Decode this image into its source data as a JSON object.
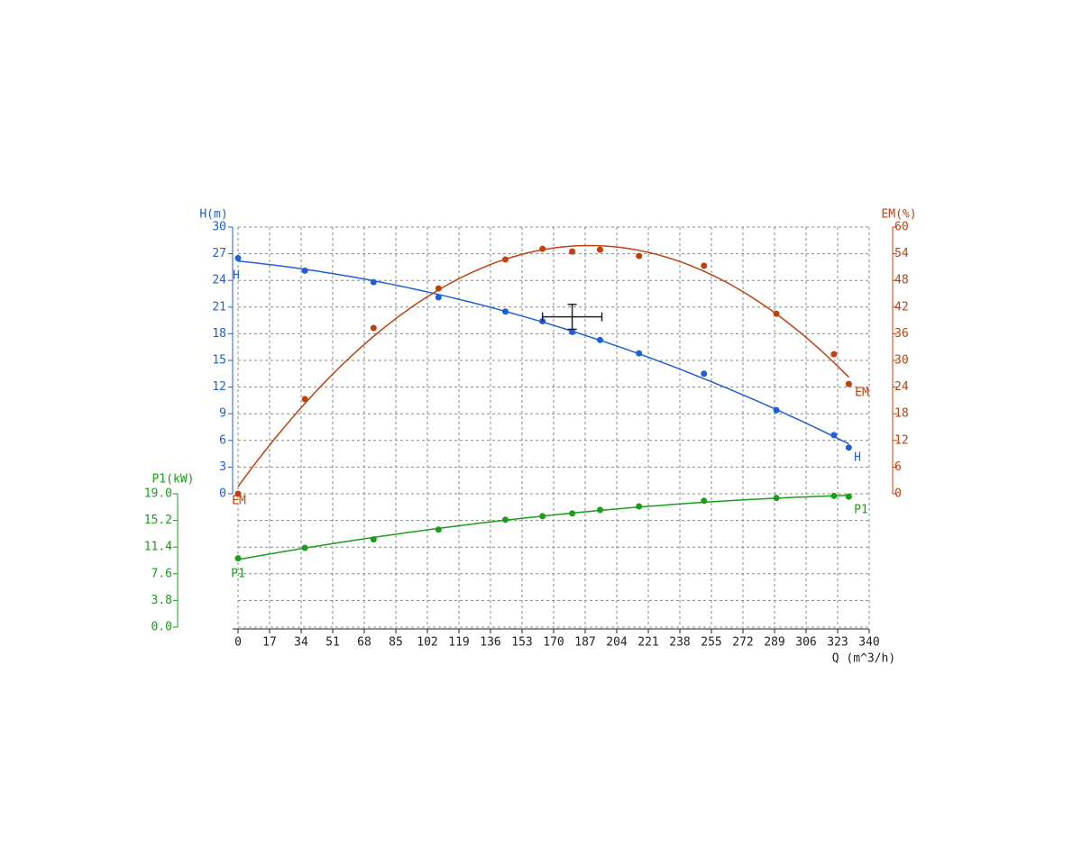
{
  "chart_data": {
    "type": "line",
    "xlabel": "Q (m^3/h)",
    "ylabel": "H(m)",
    "y2label": "EM(%)",
    "y3label": "P1(kW)",
    "xlim": [
      0,
      340
    ],
    "xticks": [
      0,
      17,
      34,
      51,
      68,
      85,
      102,
      119,
      136,
      153,
      170,
      187,
      204,
      221,
      238,
      255,
      272,
      289,
      306,
      323,
      340
    ],
    "ylim": [
      0,
      30
    ],
    "yticks": [
      0,
      3,
      6,
      9,
      12,
      15,
      18,
      21,
      24,
      27,
      30
    ],
    "y2lim": [
      0,
      60
    ],
    "y2ticks": [
      0,
      6,
      12,
      18,
      24,
      30,
      36,
      42,
      48,
      54,
      60
    ],
    "y3lim": [
      0,
      19
    ],
    "y3ticks": [
      {
        "value": 0,
        "label": "0.0"
      },
      3.8,
      7.6,
      11.4,
      15.2,
      {
        "value": 19,
        "label": "19.0"
      }
    ],
    "grid": true,
    "x": [
      0,
      36,
      73,
      108,
      144,
      164,
      180,
      195,
      216,
      251,
      290,
      321,
      329
    ],
    "series": [
      {
        "name": "H",
        "color": "#1f5fd6",
        "axis": "y",
        "values": [
          26.5,
          25.1,
          23.8,
          22.1,
          20.5,
          19.4,
          18.2,
          17.3,
          15.8,
          13.5,
          9.4,
          6.6,
          5.2
        ]
      },
      {
        "name": "EM",
        "color": "#c0400e",
        "axis": "y2",
        "values": [
          0,
          21.3,
          37.3,
          46.2,
          52.7,
          55.1,
          54.5,
          54.9,
          53.5,
          51.3,
          40.5,
          31.4,
          24.7
        ]
      },
      {
        "name": "P1",
        "color": "#1a9e1a",
        "axis": "y3",
        "values": [
          9.8,
          11.3,
          12.5,
          13.9,
          15.3,
          15.8,
          16.2,
          16.7,
          17.2,
          18.0,
          18.4,
          18.7,
          18.6
        ]
      }
    ],
    "duty_point": {
      "q": 180,
      "h": 19.9,
      "q_err": 16,
      "h_err": 1.4
    }
  }
}
